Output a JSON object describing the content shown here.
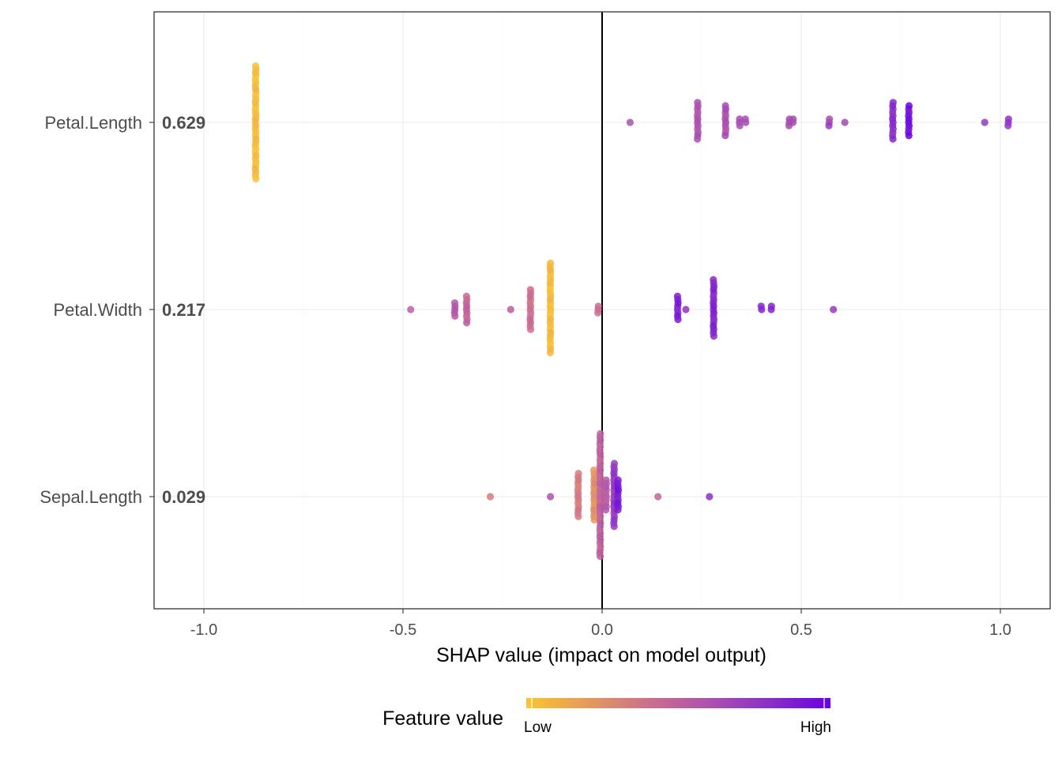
{
  "chart_data": {
    "type": "scatter",
    "subtype": "shap-beeswarm",
    "title": "",
    "xlabel": "SHAP value (impact on model output)",
    "ylabel": "",
    "xlim": [
      -1.13,
      1.12
    ],
    "x_ticks": [
      -1.0,
      -0.5,
      0.0,
      0.5,
      1.0
    ],
    "x_tick_labels": [
      "-1.0",
      "-0.5",
      "0.0",
      "0.5",
      "1.0"
    ],
    "grid": true,
    "zero_line": true,
    "features": [
      {
        "name": "Petal.Length",
        "importance": "0.629",
        "groups": [
          {
            "x": -0.87,
            "n": 35,
            "color": 0.04
          },
          {
            "x": 0.07,
            "n": 1,
            "color": 0.55
          },
          {
            "x": 0.24,
            "n": 12,
            "color": 0.6
          },
          {
            "x": 0.31,
            "n": 10,
            "color": 0.62
          },
          {
            "x": 0.345,
            "n": 3,
            "color": 0.63
          },
          {
            "x": 0.36,
            "n": 2,
            "color": 0.64
          },
          {
            "x": 0.47,
            "n": 3,
            "color": 0.67
          },
          {
            "x": 0.48,
            "n": 2,
            "color": 0.67
          },
          {
            "x": 0.57,
            "n": 3,
            "color": 0.69
          },
          {
            "x": 0.61,
            "n": 1,
            "color": 0.7
          },
          {
            "x": 0.73,
            "n": 12,
            "color": 0.8
          },
          {
            "x": 0.77,
            "n": 10,
            "color": 0.95
          },
          {
            "x": 0.96,
            "n": 1,
            "color": 0.72
          },
          {
            "x": 1.02,
            "n": 3,
            "color": 0.76
          }
        ]
      },
      {
        "name": "Petal.Width",
        "importance": "0.217",
        "groups": [
          {
            "x": -0.48,
            "n": 1,
            "color": 0.55
          },
          {
            "x": -0.37,
            "n": 5,
            "color": 0.55
          },
          {
            "x": -0.34,
            "n": 9,
            "color": 0.48
          },
          {
            "x": -0.23,
            "n": 1,
            "color": 0.5
          },
          {
            "x": -0.18,
            "n": 13,
            "color": 0.42
          },
          {
            "x": -0.13,
            "n": 28,
            "color": 0.05
          },
          {
            "x": -0.01,
            "n": 3,
            "color": 0.45
          },
          {
            "x": 0.19,
            "n": 8,
            "color": 0.88
          },
          {
            "x": 0.21,
            "n": 1,
            "color": 0.8
          },
          {
            "x": 0.28,
            "n": 18,
            "color": 0.85
          },
          {
            "x": 0.4,
            "n": 2,
            "color": 0.8
          },
          {
            "x": 0.425,
            "n": 2,
            "color": 0.82
          },
          {
            "x": 0.58,
            "n": 1,
            "color": 0.72
          }
        ]
      },
      {
        "name": "Sepal.Length",
        "importance": "0.029",
        "groups": [
          {
            "x": -0.28,
            "n": 1,
            "color": 0.38
          },
          {
            "x": -0.13,
            "n": 1,
            "color": 0.55
          },
          {
            "x": -0.06,
            "n": 14,
            "color": 0.35
          },
          {
            "x": -0.02,
            "n": 16,
            "color": 0.25
          },
          {
            "x": -0.005,
            "n": 38,
            "color": 0.5
          },
          {
            "x": 0.01,
            "n": 10,
            "color": 0.55
          },
          {
            "x": 0.03,
            "n": 20,
            "color": 0.75
          },
          {
            "x": 0.04,
            "n": 10,
            "color": 0.9
          },
          {
            "x": 0.14,
            "n": 1,
            "color": 0.5
          },
          {
            "x": 0.27,
            "n": 1,
            "color": 0.85
          }
        ]
      }
    ],
    "legend": {
      "title": "Feature value",
      "low_label": "Low",
      "high_label": "High",
      "position": "bottom",
      "colors": [
        "#f8c531",
        "#e79a5a",
        "#cd6f8c",
        "#ad52ad",
        "#8a2fc8",
        "#6a00e0"
      ]
    }
  }
}
